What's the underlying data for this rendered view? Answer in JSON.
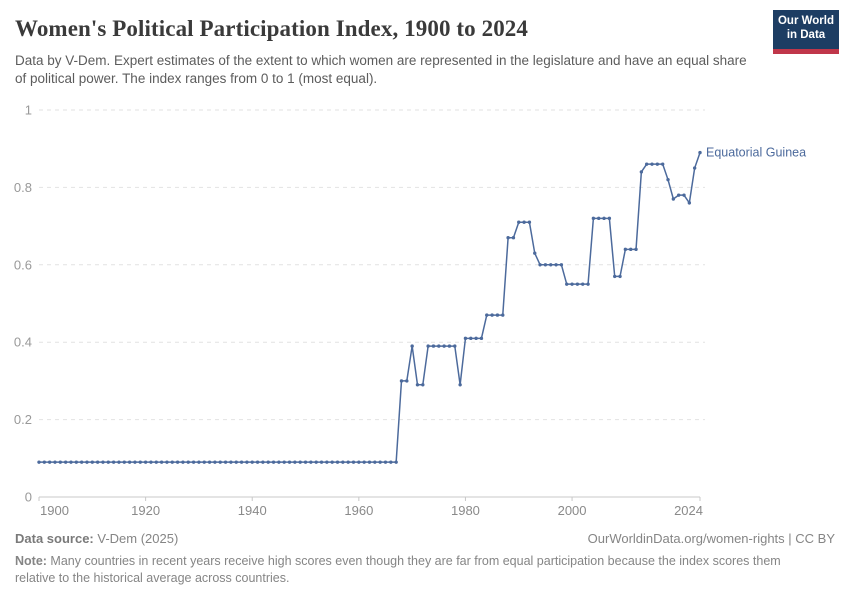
{
  "header": {
    "title": "Women's Political Participation Index, 1900 to 2024",
    "subtitle": "Data by V-Dem. Expert estimates of the extent to which women are represented in the legislature and have an equal share of political power. The index ranges from 0 to 1 (most equal).",
    "logo": {
      "line1": "Our World",
      "line2": "in Data",
      "bg_color": "#1d3d63",
      "accent_color": "#c0364a"
    }
  },
  "chart_data": {
    "type": "line",
    "title": "Women's Political Participation Index, 1900 to 2024",
    "entity": "Equatorial Guinea",
    "xlabel": "",
    "ylabel": "",
    "x_range": [
      1900,
      2024
    ],
    "x_step": 1,
    "ylim": [
      0,
      1
    ],
    "yticks": [
      0,
      0.2,
      0.4,
      0.6,
      0.8,
      1
    ],
    "ytick_labels": [
      "0",
      "0.2",
      "0.4",
      "0.6",
      "0.8",
      "1"
    ],
    "xticks": [
      1900,
      1920,
      1940,
      1960,
      1980,
      2000,
      2024
    ],
    "grid": "horizontal-dashed",
    "legend_position": "end-of-line-label",
    "line_color": "#4c6a9c",
    "marker": "circle",
    "values": [
      0.09,
      0.09,
      0.09,
      0.09,
      0.09,
      0.09,
      0.09,
      0.09,
      0.09,
      0.09,
      0.09,
      0.09,
      0.09,
      0.09,
      0.09,
      0.09,
      0.09,
      0.09,
      0.09,
      0.09,
      0.09,
      0.09,
      0.09,
      0.09,
      0.09,
      0.09,
      0.09,
      0.09,
      0.09,
      0.09,
      0.09,
      0.09,
      0.09,
      0.09,
      0.09,
      0.09,
      0.09,
      0.09,
      0.09,
      0.09,
      0.09,
      0.09,
      0.09,
      0.09,
      0.09,
      0.09,
      0.09,
      0.09,
      0.09,
      0.09,
      0.09,
      0.09,
      0.09,
      0.09,
      0.09,
      0.09,
      0.09,
      0.09,
      0.09,
      0.09,
      0.09,
      0.09,
      0.09,
      0.09,
      0.09,
      0.09,
      0.09,
      0.09,
      0.3,
      0.3,
      0.39,
      0.29,
      0.29,
      0.39,
      0.39,
      0.39,
      0.39,
      0.39,
      0.39,
      0.29,
      0.41,
      0.41,
      0.41,
      0.41,
      0.47,
      0.47,
      0.47,
      0.47,
      0.67,
      0.67,
      0.71,
      0.71,
      0.71,
      0.63,
      0.6,
      0.6,
      0.6,
      0.6,
      0.6,
      0.55,
      0.55,
      0.55,
      0.55,
      0.55,
      0.72,
      0.72,
      0.72,
      0.72,
      0.57,
      0.57,
      0.64,
      0.64,
      0.64,
      0.84,
      0.86,
      0.86,
      0.86,
      0.86,
      0.82,
      0.77,
      0.78,
      0.78,
      0.76,
      0.85,
      0.89
    ]
  },
  "footer": {
    "source_label": "Data source:",
    "source_value": " V-Dem (2025)",
    "link": "OurWorldinData.org/women-rights | CC BY",
    "note_label": "Note:",
    "note_value": " Many countries in recent years receive high scores even though they are far from equal participation because the index scores them relative to the historical average across countries."
  }
}
